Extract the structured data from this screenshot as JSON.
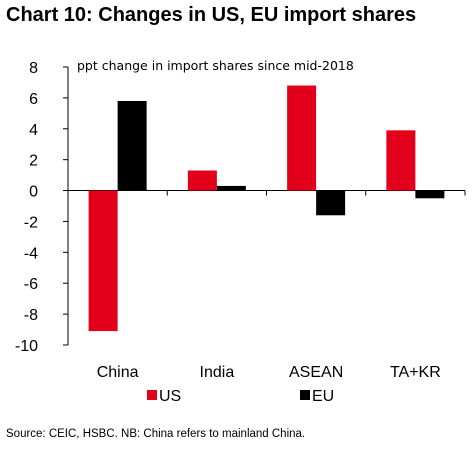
{
  "title": "Chart 10: Changes in US, EU import shares",
  "source": "Source: CEIC, HSBC. NB: China refers to mainland China.",
  "colors": {
    "US": "#e3001b",
    "EU": "#000000"
  },
  "chart_data": {
    "type": "bar",
    "annotation": "ppt change in import shares since mid-2018",
    "categories": [
      "China",
      "India",
      "ASEAN",
      "TA+KR"
    ],
    "series": [
      {
        "name": "US",
        "values": [
          -9.1,
          1.3,
          6.8,
          3.9
        ]
      },
      {
        "name": "EU",
        "values": [
          5.8,
          0.3,
          -1.6,
          -0.5
        ]
      }
    ],
    "yticks": [
      8,
      6,
      4,
      2,
      0,
      -2,
      -4,
      -6,
      -8,
      -10
    ],
    "ylim": [
      -10,
      8
    ],
    "grid": false,
    "legend_position": "bottom"
  }
}
